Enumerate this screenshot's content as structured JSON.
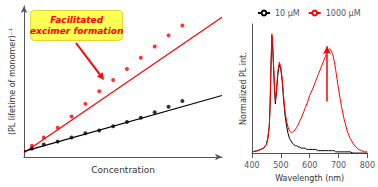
{
  "chart_data": [
    {
      "type": "scatter",
      "xlabel": "Concentration",
      "ylabel": "(PL lifetime of monomer)⁻¹",
      "xlim": [
        0,
        1
      ],
      "ylim": [
        0,
        1.08
      ],
      "tick_labels": false,
      "grid": false,
      "series": [
        {
          "type": "line",
          "color": "#FF0000",
          "x": [
            0.0,
            1.0
          ],
          "values": [
            0.03,
            1.0
          ]
        },
        {
          "type": "line",
          "color": "#000000",
          "x": [
            0.0,
            1.0
          ],
          "values": [
            0.04,
            0.44
          ]
        },
        {
          "type": "scatter",
          "color": "#FF0000",
          "x": [
            0.04,
            0.1,
            0.17,
            0.24,
            0.31,
            0.38,
            0.45,
            0.52,
            0.59,
            0.66,
            0.73,
            0.8
          ],
          "values": [
            0.08,
            0.14,
            0.21,
            0.29,
            0.38,
            0.47,
            0.55,
            0.63,
            0.71,
            0.79,
            0.87,
            0.94
          ]
        },
        {
          "type": "scatter",
          "color": "#000000",
          "x": [
            0.04,
            0.1,
            0.17,
            0.24,
            0.31,
            0.38,
            0.45,
            0.52,
            0.59,
            0.66,
            0.73,
            0.8
          ],
          "values": [
            0.06,
            0.09,
            0.11,
            0.14,
            0.17,
            0.19,
            0.22,
            0.25,
            0.28,
            0.32,
            0.36,
            0.4
          ]
        }
      ],
      "annotations": [
        {
          "text": "Facilitated\nexcimer formation",
          "color": "#FF0000",
          "background": "#FFFF55"
        }
      ]
    },
    {
      "type": "line",
      "xlabel": "Wavelength (nm)",
      "ylabel": "Normalized PL int.",
      "x": [
        400,
        420,
        430,
        440,
        450,
        455,
        460,
        463,
        466,
        469,
        472,
        475,
        478,
        481,
        485,
        490,
        495,
        500,
        505,
        510,
        515,
        520,
        525,
        530,
        535,
        540,
        545,
        550,
        555,
        560,
        565,
        570,
        575,
        580,
        585,
        590,
        595,
        600,
        610,
        620,
        630,
        640,
        650,
        655,
        660,
        665,
        670,
        675,
        680,
        685,
        690,
        695,
        700,
        710,
        720,
        730,
        740,
        750,
        760,
        770,
        780,
        790,
        800
      ],
      "series": [
        {
          "name": "10 μM",
          "color": "#000000",
          "values": [
            0.01,
            0.02,
            0.03,
            0.04,
            0.07,
            0.12,
            0.22,
            0.4,
            0.72,
            0.95,
            0.85,
            0.68,
            0.52,
            0.4,
            0.5,
            0.65,
            0.72,
            0.68,
            0.58,
            0.42,
            0.3,
            0.22,
            0.16,
            0.12,
            0.1,
            0.08,
            0.07,
            0.06,
            0.06,
            0.05,
            0.05,
            0.04,
            0.04,
            0.04,
            0.04,
            0.03,
            0.03,
            0.03,
            0.03,
            0.03,
            0.02,
            0.02,
            0.02,
            0.02,
            0.02,
            0.02,
            0.02,
            0.02,
            0.02,
            0.02,
            0.01,
            0.01,
            0.01,
            0.01,
            0.01,
            0.01,
            0.01,
            0.0,
            0.0,
            0.0,
            0.0,
            0.0,
            0.0
          ]
        },
        {
          "name": "1000 μM",
          "color": "#FF0000",
          "values": [
            0.01,
            0.02,
            0.03,
            0.04,
            0.07,
            0.12,
            0.22,
            0.42,
            0.74,
            0.97,
            0.87,
            0.7,
            0.54,
            0.42,
            0.52,
            0.67,
            0.74,
            0.7,
            0.6,
            0.45,
            0.33,
            0.26,
            0.21,
            0.18,
            0.17,
            0.17,
            0.18,
            0.19,
            0.21,
            0.23,
            0.26,
            0.28,
            0.31,
            0.34,
            0.37,
            0.4,
            0.43,
            0.47,
            0.52,
            0.58,
            0.64,
            0.7,
            0.76,
            0.79,
            0.82,
            0.84,
            0.85,
            0.83,
            0.8,
            0.75,
            0.68,
            0.6,
            0.52,
            0.38,
            0.27,
            0.18,
            0.12,
            0.08,
            0.05,
            0.03,
            0.02,
            0.01,
            0.01
          ]
        }
      ],
      "xlim": [
        400,
        800
      ],
      "xticks": [
        400,
        500,
        600,
        700,
        800
      ],
      "ylim": [
        0,
        1.05
      ],
      "tick_labels": "x",
      "grid": false,
      "legend": "top",
      "arrows": [
        {
          "x": 660,
          "from": 0.42,
          "to": 0.87,
          "color": "#FF0000"
        }
      ]
    }
  ]
}
